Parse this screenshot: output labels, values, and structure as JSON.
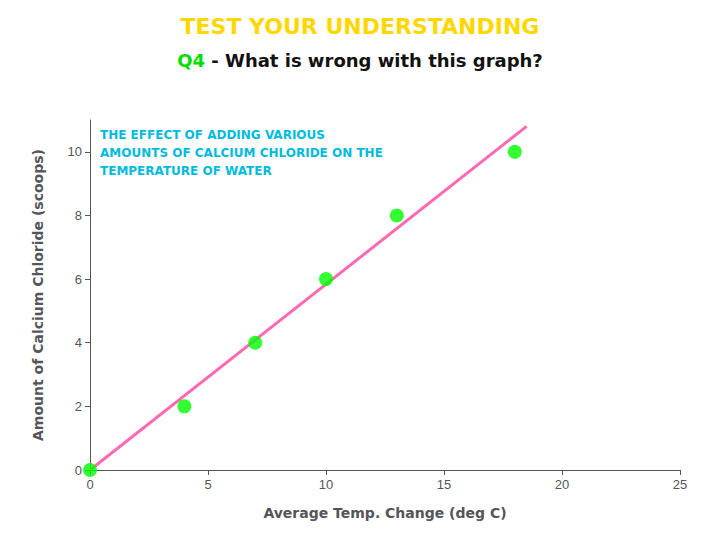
{
  "chart_data": {
    "type": "scatter",
    "title": {
      "text": "TEST YOUR UNDERSTANDING",
      "color": "#FFD700"
    },
    "subtitle": [
      {
        "text": "Q4",
        "color": "#00DD00"
      },
      {
        "text": " - What is wrong with this graph?",
        "color": "#111111"
      }
    ],
    "annotations": [
      {
        "text": "THE EFFECT OF ADDING VARIOUS\nAMOUNTS OF CALCIUM CHLORIDE ON THE\nTEMPERATURE OF WATER",
        "color": "#00BBDD"
      }
    ],
    "x_label": "Average Temp. Change (deg C)",
    "y_label": "Amount of Calcium Chloride (scoops)",
    "series": [
      {
        "type": "scatter",
        "color": "#00FF00",
        "x": [
          0,
          4,
          7,
          10,
          13,
          18
        ],
        "values": [
          0,
          2,
          4,
          6,
          8,
          10
        ]
      },
      {
        "type": "line",
        "color": "#FF69B4",
        "x": [
          0,
          18.5
        ],
        "values": [
          0,
          10.8
        ]
      }
    ],
    "xlim": [
      0,
      25
    ],
    "ylim": [
      0,
      11
    ],
    "xticks": [
      0,
      5,
      10,
      15,
      20,
      25
    ],
    "yticks": [
      0,
      2,
      4,
      6,
      8,
      10
    ],
    "grid": false
  }
}
